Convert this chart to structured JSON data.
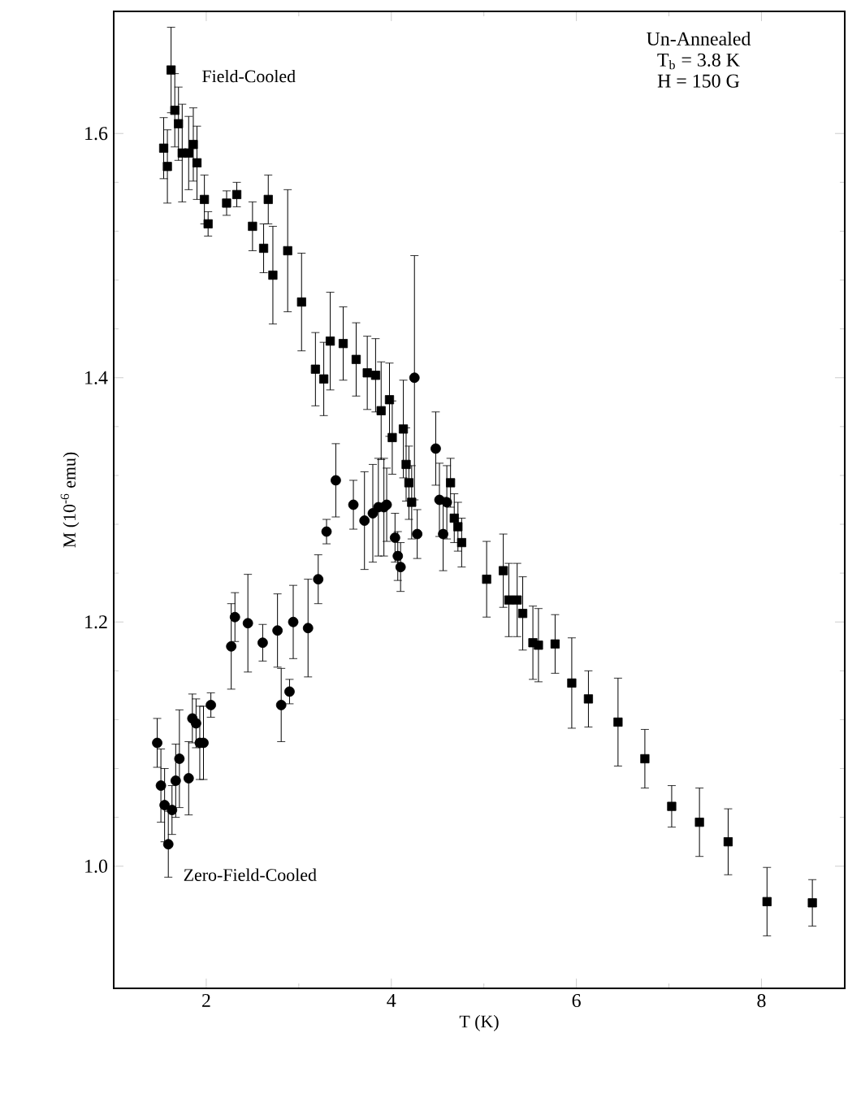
{
  "chart_data": {
    "type": "scatter",
    "xlabel": "T (K)",
    "ylabel": "M (10$^{-6}$ emu)",
    "xlim": [
      1,
      8.9
    ],
    "ylim": [
      0.9,
      1.7
    ],
    "xticks": [
      2,
      4,
      6,
      8
    ],
    "yticks": [
      {
        "value": 1,
        "label": "1.0"
      },
      1.2,
      1.4,
      1.6
    ],
    "grid": false,
    "annotations": [
      "Un-Annealed",
      "T$_{b}$ = 3.8 K",
      "H = 150 G"
    ],
    "series": [
      {
        "name": "Field-Cooled",
        "color": "#000000",
        "marker": "square",
        "x": [
          1.54,
          1.58,
          1.62,
          1.66,
          1.7,
          1.74,
          1.81,
          1.86,
          1.9,
          1.98,
          2.02,
          2.22,
          2.33,
          2.5,
          2.67,
          2.62,
          2.72,
          2.88,
          3.03,
          3.18,
          3.27,
          3.34,
          3.48,
          3.62,
          3.74,
          3.83,
          3.89,
          3.98,
          4.01,
          4.13,
          4.16,
          4.19,
          4.22,
          4.64,
          4.68,
          4.72,
          4.76,
          5.03,
          5.21,
          5.27,
          5.36,
          5.42,
          5.53,
          5.59,
          5.77,
          5.95,
          6.13,
          6.45,
          6.74,
          7.03,
          7.33,
          7.64,
          8.06,
          8.55
        ],
        "values": [
          1.588,
          1.573,
          1.652,
          1.619,
          1.608,
          1.584,
          1.584,
          1.591,
          1.576,
          1.546,
          1.526,
          1.543,
          1.55,
          1.524,
          1.546,
          1.506,
          1.484,
          1.504,
          1.462,
          1.407,
          1.399,
          1.43,
          1.428,
          1.415,
          1.404,
          1.402,
          1.373,
          1.382,
          1.351,
          1.358,
          1.329,
          1.314,
          1.298,
          1.314,
          1.285,
          1.278,
          1.265,
          1.235,
          1.242,
          1.218,
          1.218,
          1.207,
          1.183,
          1.181,
          1.182,
          1.15,
          1.137,
          1.118,
          1.088,
          1.049,
          1.036,
          1.02,
          0.971,
          0.97
        ],
        "errors": [
          0.025,
          0.03,
          0.035,
          0.03,
          0.03,
          0.04,
          0.03,
          0.03,
          0.03,
          0.02,
          0.01,
          0.01,
          0.01,
          0.02,
          0.02,
          0.02,
          0.04,
          0.05,
          0.04,
          0.03,
          0.03,
          0.04,
          0.03,
          0.03,
          0.03,
          0.03,
          0.04,
          0.03,
          0.03,
          0.04,
          0.03,
          0.03,
          0.03,
          0.02,
          0.02,
          0.02,
          0.02,
          0.031,
          0.03,
          0.03,
          0.03,
          0.03,
          0.03,
          0.03,
          0.024,
          0.037,
          0.023,
          0.036,
          0.024,
          0.017,
          0.028,
          0.027,
          0.028,
          0.019
        ]
      },
      {
        "name": "Zero-Field-Cooled",
        "color": "#000000",
        "marker": "circle",
        "x": [
          1.47,
          1.51,
          1.55,
          1.59,
          1.63,
          1.67,
          1.71,
          1.81,
          1.85,
          1.89,
          1.93,
          1.97,
          2.05,
          2.27,
          2.31,
          2.45,
          2.61,
          2.77,
          2.81,
          2.9,
          2.94,
          3.1,
          3.21,
          3.3,
          3.4,
          3.59,
          3.71,
          3.8,
          3.86,
          3.95,
          3.92,
          4.04,
          4.07,
          4.1,
          4.25,
          4.28,
          4.48,
          4.52,
          4.6,
          4.56
        ],
        "values": [
          1.101,
          1.066,
          1.05,
          1.018,
          1.046,
          1.07,
          1.088,
          1.072,
          1.121,
          1.117,
          1.101,
          1.101,
          1.132,
          1.18,
          1.204,
          1.199,
          1.183,
          1.193,
          1.132,
          1.143,
          1.2,
          1.195,
          1.235,
          1.274,
          1.316,
          1.296,
          1.283,
          1.289,
          1.294,
          1.296,
          1.294,
          1.269,
          1.254,
          1.245,
          1.4,
          1.272,
          1.342,
          1.3,
          1.298,
          1.272
        ],
        "errors": [
          0.02,
          0.03,
          0.03,
          0.027,
          0.02,
          0.03,
          0.04,
          0.03,
          0.02,
          0.02,
          0.03,
          0.03,
          0.01,
          0.035,
          0.02,
          0.04,
          0.015,
          0.03,
          0.03,
          0.01,
          0.03,
          0.04,
          0.02,
          0.01,
          0.03,
          0.02,
          0.04,
          0.04,
          0.04,
          0.03,
          0.04,
          0.02,
          0.02,
          0.02,
          0.1,
          0.02,
          0.03,
          0.03,
          0.03,
          0.03
        ]
      }
    ]
  }
}
